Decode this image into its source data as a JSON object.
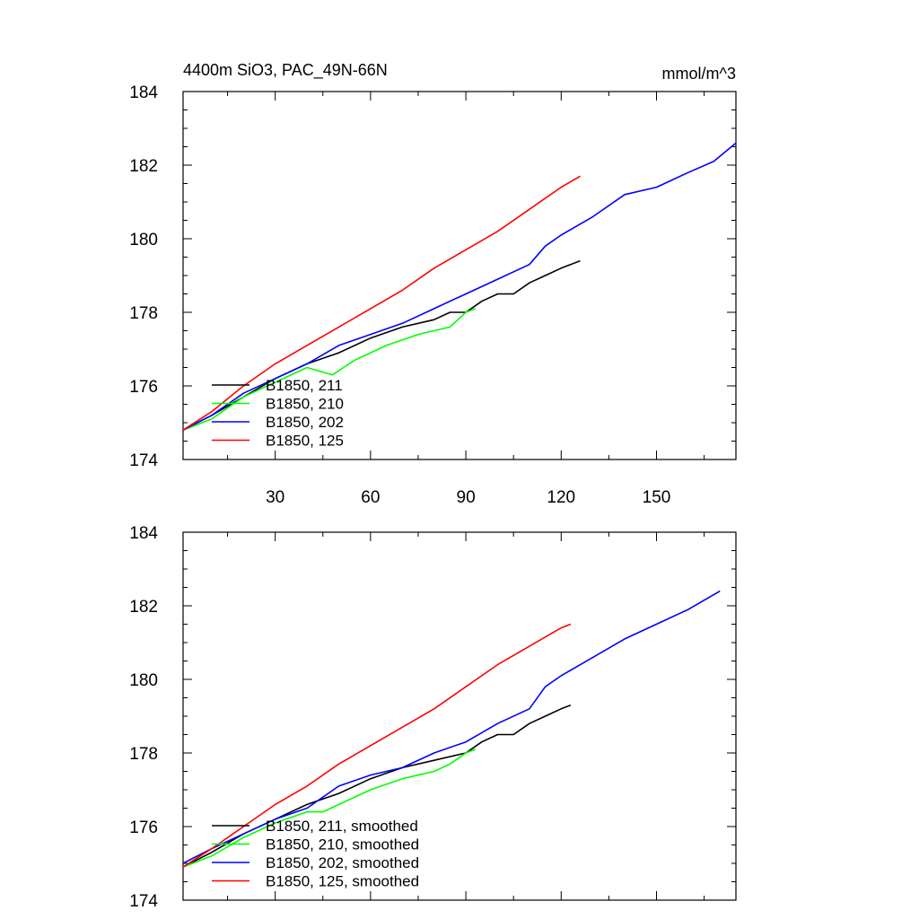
{
  "chart_data": [
    {
      "type": "line",
      "title_left": "4400m SiO3, PAC_49N-66N",
      "title_right": "mmol/m^3",
      "xlim": [
        1,
        175
      ],
      "ylim": [
        174,
        184
      ],
      "yticks": [
        "174",
        "176",
        "178",
        "180",
        "182",
        "184"
      ],
      "xticks": [
        30,
        60,
        90,
        120,
        150
      ],
      "xtick_labels": [
        "30",
        "60",
        "90",
        "120",
        "150"
      ],
      "legend_position": "bottom-left",
      "series": [
        {
          "name": "B1850, 211",
          "color": "#000000",
          "x": [
            1,
            10,
            20,
            30,
            40,
            50,
            60,
            70,
            80,
            85,
            90,
            95,
            100,
            105,
            110,
            115,
            120,
            126
          ],
          "y": [
            174.8,
            175.2,
            175.7,
            176.2,
            176.6,
            176.9,
            177.3,
            177.6,
            177.8,
            178.0,
            178.0,
            178.3,
            178.5,
            178.5,
            178.8,
            179.0,
            179.2,
            179.4
          ]
        },
        {
          "name": "B1850, 210",
          "color": "#00ff00",
          "x": [
            1,
            10,
            20,
            30,
            40,
            44,
            48,
            55,
            65,
            75,
            80,
            85,
            90,
            93
          ],
          "y": [
            174.8,
            175.1,
            175.7,
            176.1,
            176.5,
            176.4,
            176.3,
            176.7,
            177.1,
            177.4,
            177.5,
            177.6,
            178.0,
            178.1
          ]
        },
        {
          "name": "B1850, 202",
          "color": "#0000ff",
          "x": [
            1,
            10,
            20,
            30,
            40,
            50,
            60,
            70,
            80,
            90,
            100,
            110,
            115,
            120,
            130,
            140,
            150,
            160,
            168,
            175
          ],
          "y": [
            174.8,
            175.2,
            175.8,
            176.2,
            176.6,
            177.1,
            177.4,
            177.7,
            178.1,
            178.5,
            178.9,
            179.3,
            179.8,
            180.1,
            180.6,
            181.2,
            181.4,
            181.8,
            182.1,
            182.6
          ]
        },
        {
          "name": "B1850, 125",
          "color": "#ff0000",
          "x": [
            1,
            10,
            20,
            30,
            40,
            50,
            60,
            70,
            80,
            90,
            100,
            110,
            120,
            126
          ],
          "y": [
            174.8,
            175.3,
            176.0,
            176.6,
            177.1,
            177.6,
            178.1,
            178.6,
            179.2,
            179.7,
            180.2,
            180.8,
            181.4,
            181.7
          ]
        }
      ]
    },
    {
      "type": "line",
      "xlim": [
        1,
        175
      ],
      "ylim": [
        174,
        184
      ],
      "yticks": [
        "174",
        "176",
        "178",
        "180",
        "182",
        "184"
      ],
      "xticks": [
        30,
        60,
        90,
        120,
        150
      ],
      "legend_position": "bottom-left",
      "series": [
        {
          "name": "B1850, 211, smoothed",
          "color": "#000000",
          "x": [
            1,
            10,
            20,
            30,
            40,
            50,
            60,
            70,
            80,
            90,
            95,
            100,
            105,
            110,
            115,
            120,
            123
          ],
          "y": [
            174.9,
            175.3,
            175.8,
            176.2,
            176.6,
            176.9,
            177.3,
            177.6,
            177.8,
            178.0,
            178.3,
            178.5,
            178.5,
            178.8,
            179.0,
            179.2,
            179.3
          ]
        },
        {
          "name": "B1850, 210, smoothed",
          "color": "#00ff00",
          "x": [
            1,
            10,
            20,
            30,
            40,
            45,
            50,
            60,
            70,
            80,
            85,
            90,
            93
          ],
          "y": [
            174.9,
            175.2,
            175.7,
            176.1,
            176.4,
            176.4,
            176.6,
            177.0,
            177.3,
            177.5,
            177.7,
            178.0,
            178.1
          ]
        },
        {
          "name": "B1850, 202, smoothed",
          "color": "#0000ff",
          "x": [
            1,
            10,
            20,
            30,
            40,
            50,
            60,
            70,
            80,
            90,
            100,
            110,
            115,
            120,
            130,
            140,
            150,
            160,
            170
          ],
          "y": [
            175.0,
            175.4,
            175.8,
            176.2,
            176.5,
            177.1,
            177.4,
            177.6,
            178.0,
            178.3,
            178.8,
            179.2,
            179.8,
            180.1,
            180.6,
            181.1,
            181.5,
            181.9,
            182.4
          ]
        },
        {
          "name": "B1850, 125, smoothed",
          "color": "#ff0000",
          "x": [
            1,
            10,
            20,
            30,
            40,
            50,
            60,
            70,
            80,
            90,
            100,
            110,
            120,
            123
          ],
          "y": [
            174.9,
            175.4,
            176.0,
            176.6,
            177.1,
            177.7,
            178.2,
            178.7,
            179.2,
            179.8,
            180.4,
            180.9,
            181.4,
            181.5
          ]
        }
      ]
    }
  ]
}
